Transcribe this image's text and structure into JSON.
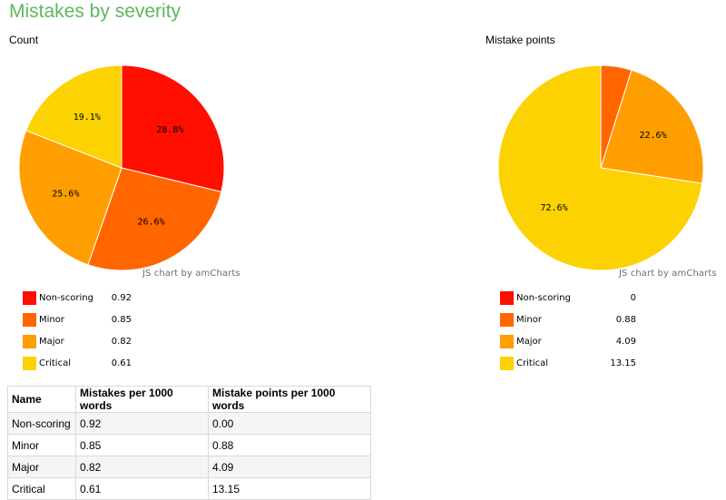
{
  "page": {
    "title": "Mistakes by severity"
  },
  "credit": "JS chart by amCharts",
  "colors": {
    "Non-scoring": "#ff0f00",
    "Minor": "#ff6600",
    "Major": "#ff9e01",
    "Critical": "#fcd202"
  },
  "chart_data": [
    {
      "type": "pie",
      "title": "Count",
      "categories": [
        "Non-scoring",
        "Minor",
        "Major",
        "Critical"
      ],
      "values": [
        0.92,
        0.85,
        0.82,
        0.61
      ],
      "value_labels": [
        "0.92",
        "0.85",
        "0.82",
        "0.61"
      ],
      "percent_labels": [
        "28.8%",
        "26.6%",
        "25.6%",
        "19.1%"
      ],
      "legend": "bottom-left",
      "start_angle_deg": 0,
      "direction": "clockwise"
    },
    {
      "type": "pie",
      "title": "Mistake points",
      "categories": [
        "Non-scoring",
        "Minor",
        "Major",
        "Critical"
      ],
      "values": [
        0,
        0.88,
        4.09,
        13.15
      ],
      "value_labels": [
        "0",
        "0.88",
        "4.09",
        "13.15"
      ],
      "percent_labels": [
        "",
        "",
        "22.6%",
        "72.6%"
      ],
      "legend": "bottom-left",
      "start_angle_deg": 0,
      "direction": "clockwise"
    }
  ],
  "table": {
    "headers": [
      "Name",
      "Mistakes per 1000 words",
      "Mistake points per 1000 words"
    ],
    "rows": [
      [
        "Non-scoring",
        "0.92",
        "0.00"
      ],
      [
        "Minor",
        "0.85",
        "0.88"
      ],
      [
        "Major",
        "0.82",
        "4.09"
      ],
      [
        "Critical",
        "0.61",
        "13.15"
      ]
    ]
  }
}
